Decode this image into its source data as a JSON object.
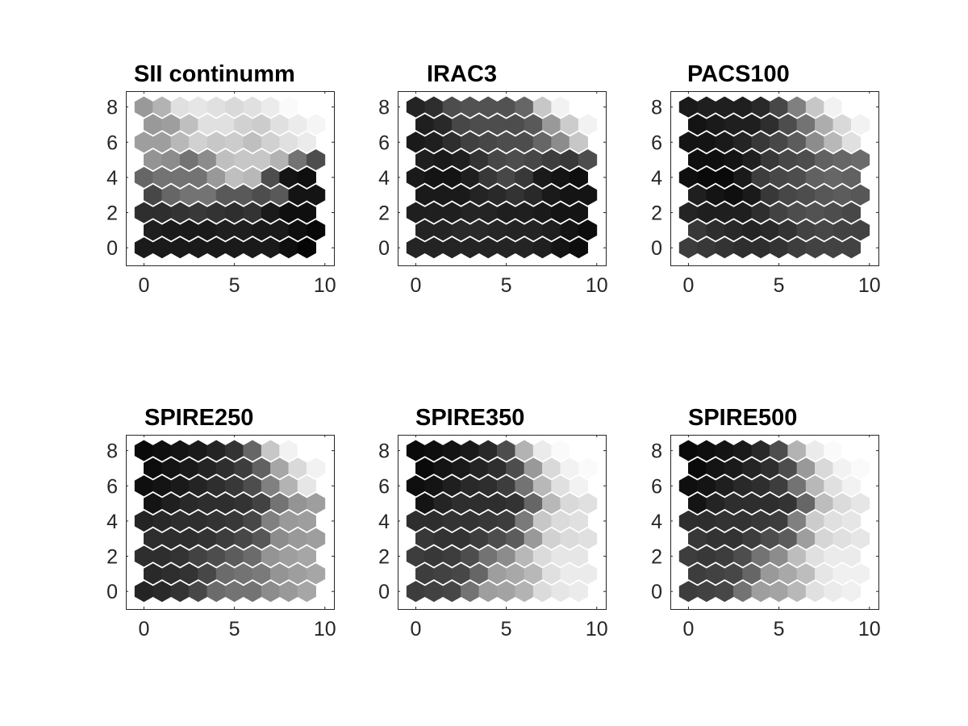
{
  "chart_data": [
    {
      "type": "heatmap",
      "subtype": "hexagonal-som-plane",
      "title": "SII continumm",
      "xlabel": "",
      "ylabel": "",
      "xlim": [
        -1,
        10.5
      ],
      "ylim": [
        -1,
        8.9
      ],
      "xticks": [
        "0",
        "5",
        "10"
      ],
      "yticks": [
        "0",
        "2",
        "4",
        "6",
        "8"
      ],
      "colormap": "gray",
      "grid_cols": 10,
      "grid_rows": 9,
      "values": [
        [
          0.1,
          0.1,
          0.1,
          0.1,
          0.1,
          0.1,
          0.1,
          0.1,
          0.06,
          0.02
        ],
        [
          0.12,
          0.1,
          0.1,
          0.1,
          0.12,
          0.12,
          0.1,
          0.1,
          0.06,
          0.03
        ],
        [
          0.18,
          0.18,
          0.2,
          0.22,
          0.2,
          0.18,
          0.2,
          0.1,
          0.06,
          0.06
        ],
        [
          0.28,
          0.4,
          0.45,
          0.45,
          0.35,
          0.35,
          0.3,
          0.35,
          0.08,
          0.08
        ],
        [
          0.4,
          0.45,
          0.45,
          0.45,
          0.6,
          0.75,
          0.72,
          0.3,
          0.08,
          0.06
        ],
        [
          0.58,
          0.55,
          0.45,
          0.55,
          0.75,
          0.78,
          0.78,
          0.7,
          0.45,
          0.3
        ],
        [
          0.62,
          0.62,
          0.72,
          0.82,
          0.78,
          0.8,
          0.75,
          0.82,
          0.88,
          0.92
        ],
        [
          0.6,
          0.62,
          0.75,
          0.88,
          0.88,
          0.82,
          0.8,
          0.88,
          0.92,
          0.96
        ],
        [
          0.6,
          0.7,
          0.88,
          0.9,
          0.88,
          0.85,
          0.88,
          0.92,
          0.98,
          1.0
        ]
      ]
    },
    {
      "type": "heatmap",
      "subtype": "hexagonal-som-plane",
      "title": "IRAC3",
      "xlabel": "",
      "ylabel": "",
      "xlim": [
        -1,
        10.5
      ],
      "ylim": [
        -1,
        8.9
      ],
      "xticks": [
        "0",
        "5",
        "10"
      ],
      "yticks": [
        "0",
        "2",
        "4",
        "6",
        "8"
      ],
      "colormap": "gray",
      "grid_cols": 10,
      "grid_rows": 9,
      "values": [
        [
          0.14,
          0.14,
          0.14,
          0.14,
          0.14,
          0.14,
          0.14,
          0.12,
          0.08,
          0.05
        ],
        [
          0.14,
          0.14,
          0.16,
          0.16,
          0.15,
          0.14,
          0.14,
          0.12,
          0.08,
          0.05
        ],
        [
          0.12,
          0.12,
          0.12,
          0.14,
          0.14,
          0.12,
          0.12,
          0.1,
          0.08,
          0.08
        ],
        [
          0.1,
          0.1,
          0.1,
          0.14,
          0.16,
          0.2,
          0.16,
          0.1,
          0.08,
          0.08
        ],
        [
          0.1,
          0.08,
          0.08,
          0.12,
          0.22,
          0.28,
          0.22,
          0.1,
          0.08,
          0.06
        ],
        [
          0.12,
          0.1,
          0.12,
          0.2,
          0.28,
          0.3,
          0.28,
          0.24,
          0.22,
          0.3
        ],
        [
          0.1,
          0.12,
          0.18,
          0.25,
          0.28,
          0.3,
          0.3,
          0.4,
          0.55,
          0.78
        ],
        [
          0.12,
          0.16,
          0.28,
          0.3,
          0.3,
          0.3,
          0.35,
          0.6,
          0.8,
          0.95
        ],
        [
          0.14,
          0.18,
          0.3,
          0.32,
          0.32,
          0.32,
          0.4,
          0.78,
          0.95,
          1.0
        ]
      ]
    },
    {
      "type": "heatmap",
      "subtype": "hexagonal-som-plane",
      "title": "PACS100",
      "xlabel": "",
      "ylabel": "",
      "xlim": [
        -1,
        10.5
      ],
      "ylim": [
        -1,
        8.9
      ],
      "xticks": [
        "0",
        "5",
        "10"
      ],
      "yticks": [
        "0",
        "2",
        "4",
        "6",
        "8"
      ],
      "colormap": "gray",
      "grid_cols": 10,
      "grid_rows": 9,
      "values": [
        [
          0.24,
          0.22,
          0.2,
          0.18,
          0.18,
          0.2,
          0.24,
          0.26,
          0.26,
          0.26
        ],
        [
          0.22,
          0.18,
          0.16,
          0.14,
          0.16,
          0.2,
          0.26,
          0.28,
          0.26,
          0.26
        ],
        [
          0.14,
          0.12,
          0.12,
          0.12,
          0.18,
          0.26,
          0.3,
          0.32,
          0.3,
          0.28
        ],
        [
          0.12,
          0.08,
          0.06,
          0.1,
          0.22,
          0.28,
          0.3,
          0.34,
          0.36,
          0.34
        ],
        [
          0.06,
          0.04,
          0.04,
          0.1,
          0.24,
          0.28,
          0.3,
          0.38,
          0.4,
          0.38
        ],
        [
          0.06,
          0.06,
          0.08,
          0.12,
          0.22,
          0.28,
          0.3,
          0.38,
          0.4,
          0.42
        ],
        [
          0.08,
          0.08,
          0.1,
          0.14,
          0.22,
          0.28,
          0.36,
          0.55,
          0.72,
          0.88
        ],
        [
          0.08,
          0.1,
          0.12,
          0.12,
          0.18,
          0.3,
          0.45,
          0.68,
          0.85,
          0.95
        ],
        [
          0.1,
          0.12,
          0.12,
          0.12,
          0.16,
          0.28,
          0.5,
          0.78,
          0.95,
          1.0
        ]
      ]
    },
    {
      "type": "heatmap",
      "subtype": "hexagonal-som-plane",
      "title": "SPIRE250",
      "xlabel": "",
      "ylabel": "",
      "xlim": [
        -1,
        10.5
      ],
      "ylim": [
        -1,
        8.9
      ],
      "xticks": [
        "0",
        "5",
        "10"
      ],
      "yticks": [
        "0",
        "2",
        "4",
        "6",
        "8"
      ],
      "colormap": "gray",
      "grid_cols": 10,
      "grid_rows": 9,
      "values": [
        [
          0.14,
          0.16,
          0.2,
          0.28,
          0.42,
          0.45,
          0.45,
          0.55,
          0.6,
          0.65
        ],
        [
          0.16,
          0.18,
          0.2,
          0.28,
          0.42,
          0.45,
          0.48,
          0.58,
          0.62,
          0.65
        ],
        [
          0.18,
          0.18,
          0.2,
          0.26,
          0.3,
          0.36,
          0.42,
          0.58,
          0.62,
          0.65
        ],
        [
          0.18,
          0.18,
          0.18,
          0.2,
          0.24,
          0.28,
          0.34,
          0.55,
          0.6,
          0.62
        ],
        [
          0.14,
          0.16,
          0.18,
          0.18,
          0.2,
          0.22,
          0.28,
          0.5,
          0.6,
          0.62
        ],
        [
          0.08,
          0.12,
          0.16,
          0.18,
          0.18,
          0.2,
          0.26,
          0.45,
          0.58,
          0.62
        ],
        [
          0.06,
          0.08,
          0.1,
          0.14,
          0.18,
          0.22,
          0.3,
          0.5,
          0.7,
          0.9
        ],
        [
          0.05,
          0.08,
          0.1,
          0.14,
          0.18,
          0.24,
          0.38,
          0.65,
          0.85,
          0.95
        ],
        [
          0.04,
          0.06,
          0.08,
          0.1,
          0.14,
          0.2,
          0.4,
          0.78,
          0.95,
          1.0
        ]
      ]
    },
    {
      "type": "heatmap",
      "subtype": "hexagonal-som-plane",
      "title": "SPIRE350",
      "xlabel": "",
      "ylabel": "",
      "xlim": [
        -1,
        10.5
      ],
      "ylim": [
        -1,
        8.9
      ],
      "xticks": [
        "0",
        "5",
        "10"
      ],
      "yticks": [
        "0",
        "2",
        "4",
        "6",
        "8"
      ],
      "colormap": "gray",
      "grid_cols": 10,
      "grid_rows": 9,
      "values": [
        [
          0.24,
          0.26,
          0.28,
          0.45,
          0.62,
          0.64,
          0.7,
          0.86,
          0.9,
          0.92
        ],
        [
          0.24,
          0.26,
          0.28,
          0.4,
          0.62,
          0.66,
          0.72,
          0.88,
          0.92,
          0.92
        ],
        [
          0.24,
          0.22,
          0.24,
          0.3,
          0.45,
          0.55,
          0.72,
          0.86,
          0.9,
          0.9
        ],
        [
          0.22,
          0.2,
          0.2,
          0.24,
          0.3,
          0.36,
          0.6,
          0.82,
          0.86,
          0.88
        ],
        [
          0.18,
          0.18,
          0.2,
          0.2,
          0.22,
          0.24,
          0.48,
          0.78,
          0.86,
          0.88
        ],
        [
          0.08,
          0.14,
          0.18,
          0.18,
          0.18,
          0.2,
          0.4,
          0.72,
          0.85,
          0.88
        ],
        [
          0.06,
          0.08,
          0.12,
          0.16,
          0.18,
          0.24,
          0.45,
          0.72,
          0.88,
          0.95
        ],
        [
          0.04,
          0.08,
          0.1,
          0.14,
          0.18,
          0.3,
          0.6,
          0.85,
          0.95,
          0.98
        ],
        [
          0.04,
          0.06,
          0.08,
          0.1,
          0.16,
          0.3,
          0.7,
          0.92,
          0.98,
          1.0
        ]
      ]
    },
    {
      "type": "heatmap",
      "subtype": "hexagonal-som-plane",
      "title": "SPIRE500",
      "xlabel": "",
      "ylabel": "",
      "xlim": [
        -1,
        10.5
      ],
      "ylim": [
        -1,
        8.9
      ],
      "xticks": [
        "0",
        "5",
        "10"
      ],
      "yticks": [
        "0",
        "2",
        "4",
        "6",
        "8"
      ],
      "colormap": "gray",
      "grid_cols": 10,
      "grid_rows": 9,
      "values": [
        [
          0.24,
          0.26,
          0.28,
          0.45,
          0.62,
          0.64,
          0.72,
          0.88,
          0.92,
          0.94
        ],
        [
          0.24,
          0.26,
          0.28,
          0.4,
          0.6,
          0.66,
          0.74,
          0.9,
          0.94,
          0.94
        ],
        [
          0.24,
          0.22,
          0.24,
          0.3,
          0.45,
          0.55,
          0.74,
          0.88,
          0.92,
          0.92
        ],
        [
          0.22,
          0.2,
          0.2,
          0.24,
          0.3,
          0.36,
          0.62,
          0.84,
          0.88,
          0.9
        ],
        [
          0.18,
          0.18,
          0.2,
          0.2,
          0.22,
          0.24,
          0.5,
          0.8,
          0.88,
          0.9
        ],
        [
          0.08,
          0.14,
          0.18,
          0.18,
          0.18,
          0.2,
          0.4,
          0.74,
          0.86,
          0.9
        ],
        [
          0.06,
          0.08,
          0.12,
          0.16,
          0.18,
          0.24,
          0.45,
          0.72,
          0.88,
          0.95
        ],
        [
          0.04,
          0.08,
          0.1,
          0.14,
          0.18,
          0.3,
          0.6,
          0.85,
          0.95,
          0.98
        ],
        [
          0.04,
          0.06,
          0.08,
          0.1,
          0.16,
          0.3,
          0.7,
          0.92,
          0.98,
          1.0
        ]
      ]
    }
  ]
}
